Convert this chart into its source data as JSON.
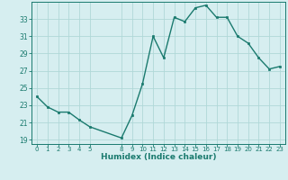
{
  "x": [
    0,
    1,
    2,
    3,
    4,
    5,
    8,
    9,
    10,
    11,
    12,
    13,
    14,
    15,
    16,
    17,
    18,
    19,
    20,
    21,
    22,
    23
  ],
  "y": [
    24.0,
    22.8,
    22.2,
    22.2,
    21.3,
    20.5,
    19.2,
    21.8,
    25.5,
    31.0,
    28.5,
    33.2,
    32.7,
    34.3,
    34.6,
    33.2,
    33.2,
    31.0,
    30.2,
    28.5,
    27.2,
    27.5
  ],
  "xlabel": "Humidex (Indice chaleur)",
  "xlim": [
    -0.5,
    23.5
  ],
  "ylim": [
    18.5,
    35.0
  ],
  "yticks": [
    19,
    21,
    23,
    25,
    27,
    29,
    31,
    33
  ],
  "xticks": [
    0,
    1,
    2,
    3,
    4,
    5,
    8,
    9,
    10,
    11,
    12,
    13,
    14,
    15,
    16,
    17,
    18,
    19,
    20,
    21,
    22,
    23
  ],
  "xtick_labels": [
    "0",
    "1",
    "2",
    "3",
    "4",
    "5",
    "8",
    "9",
    "10",
    "11",
    "12",
    "13",
    "14",
    "15",
    "16",
    "17",
    "18",
    "19",
    "20",
    "21",
    "22",
    "23"
  ],
  "line_color": "#1a7a6e",
  "marker_color": "#1a7a6e",
  "bg_color": "#d6eef0",
  "grid_color": "#b0d8d8",
  "axis_color": "#1a7a6e",
  "label_color": "#1a7a6e"
}
